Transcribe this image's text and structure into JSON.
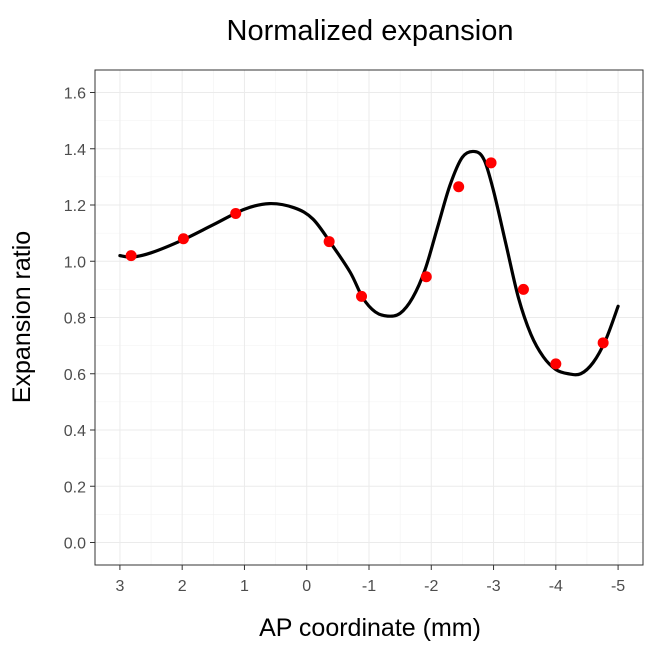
{
  "chart_data": {
    "type": "line",
    "title": "Normalized expansion",
    "xlabel": "AP coordinate (mm)",
    "ylabel": "Expansion ratio",
    "x_reversed": true,
    "xlim": [
      3.4,
      -5.4
    ],
    "ylim": [
      -0.08,
      1.68
    ],
    "x_ticks": [
      3,
      2,
      1,
      0,
      -1,
      -2,
      -3,
      -4,
      -5
    ],
    "x_tick_labels": [
      "3",
      "2",
      "1",
      "0",
      "-1",
      "-2",
      "-3",
      "-4",
      "-5"
    ],
    "y_ticks": [
      0.0,
      0.2,
      0.4,
      0.6,
      0.8,
      1.0,
      1.2,
      1.4,
      1.6
    ],
    "y_tick_labels": [
      "0.0",
      "0.2",
      "0.4",
      "0.6",
      "0.8",
      "1.0",
      "1.2",
      "1.4",
      "1.6"
    ],
    "grid": true,
    "series": [
      {
        "kind": "points",
        "color": "#ff0000",
        "x": [
          2.82,
          1.98,
          1.14,
          -0.36,
          -0.88,
          -1.92,
          -2.44,
          -2.96,
          -3.48,
          -4.0,
          -4.76
        ],
        "y": [
          1.02,
          1.08,
          1.17,
          1.07,
          0.875,
          0.945,
          1.265,
          1.35,
          0.9,
          0.635,
          0.71
        ]
      },
      {
        "kind": "smooth-curve",
        "color": "#000000",
        "x": [
          3.0,
          2.8,
          2.5,
          2.0,
          1.5,
          1.0,
          0.6,
          0.2,
          -0.1,
          -0.4,
          -0.7,
          -0.9,
          -1.1,
          -1.3,
          -1.5,
          -1.7,
          -1.9,
          -2.1,
          -2.3,
          -2.5,
          -2.7,
          -2.85,
          -3.0,
          -3.2,
          -3.4,
          -3.6,
          -3.8,
          -4.0,
          -4.2,
          -4.4,
          -4.6,
          -4.8,
          -5.0
        ],
        "y": [
          1.02,
          1.015,
          1.03,
          1.075,
          1.13,
          1.185,
          1.205,
          1.19,
          1.15,
          1.06,
          0.96,
          0.87,
          0.82,
          0.805,
          0.815,
          0.87,
          0.97,
          1.12,
          1.27,
          1.37,
          1.39,
          1.36,
          1.25,
          1.06,
          0.87,
          0.74,
          0.66,
          0.615,
          0.6,
          0.6,
          0.64,
          0.72,
          0.84
        ]
      }
    ]
  }
}
